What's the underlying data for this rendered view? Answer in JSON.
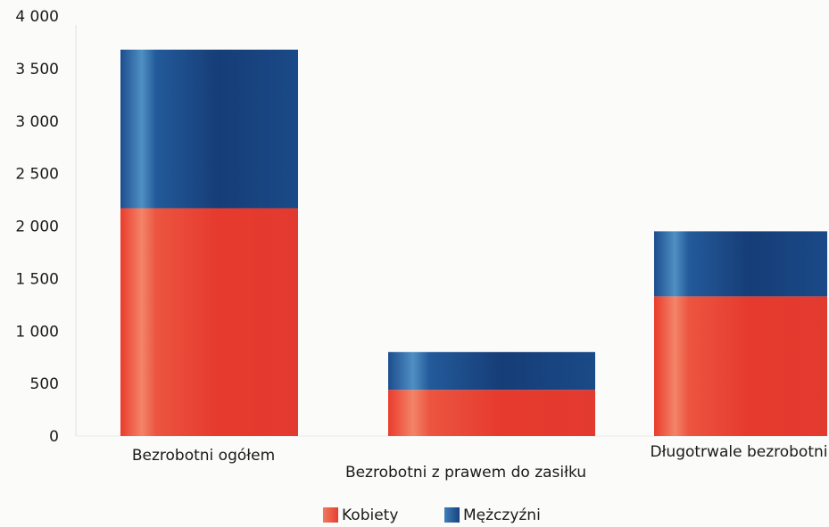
{
  "chart_data": {
    "type": "bar",
    "stacked": true,
    "categories": [
      "Bezrobotni ogółem",
      "Bezrobotni z prawem do zasiłku",
      "Długotrwale bezrobotni"
    ],
    "series": [
      {
        "name": "Kobiety",
        "values": [
          2170,
          440,
          1330
        ],
        "color": "#e8453a"
      },
      {
        "name": "Mężczyźni",
        "values": [
          1510,
          360,
          620
        ],
        "color": "#1d4d8a"
      }
    ],
    "ylim": [
      0,
      4000
    ],
    "yticks": [
      "0",
      "500",
      "1 000",
      "1 500",
      "2 000",
      "2 500",
      "3 000",
      "3 500",
      "4 000"
    ],
    "ytick_values": [
      0,
      500,
      1000,
      1500,
      2000,
      2500,
      3000,
      3500,
      4000
    ],
    "grid": false,
    "legend_position": "bottom",
    "title": "",
    "xlabel": "",
    "ylabel": ""
  }
}
